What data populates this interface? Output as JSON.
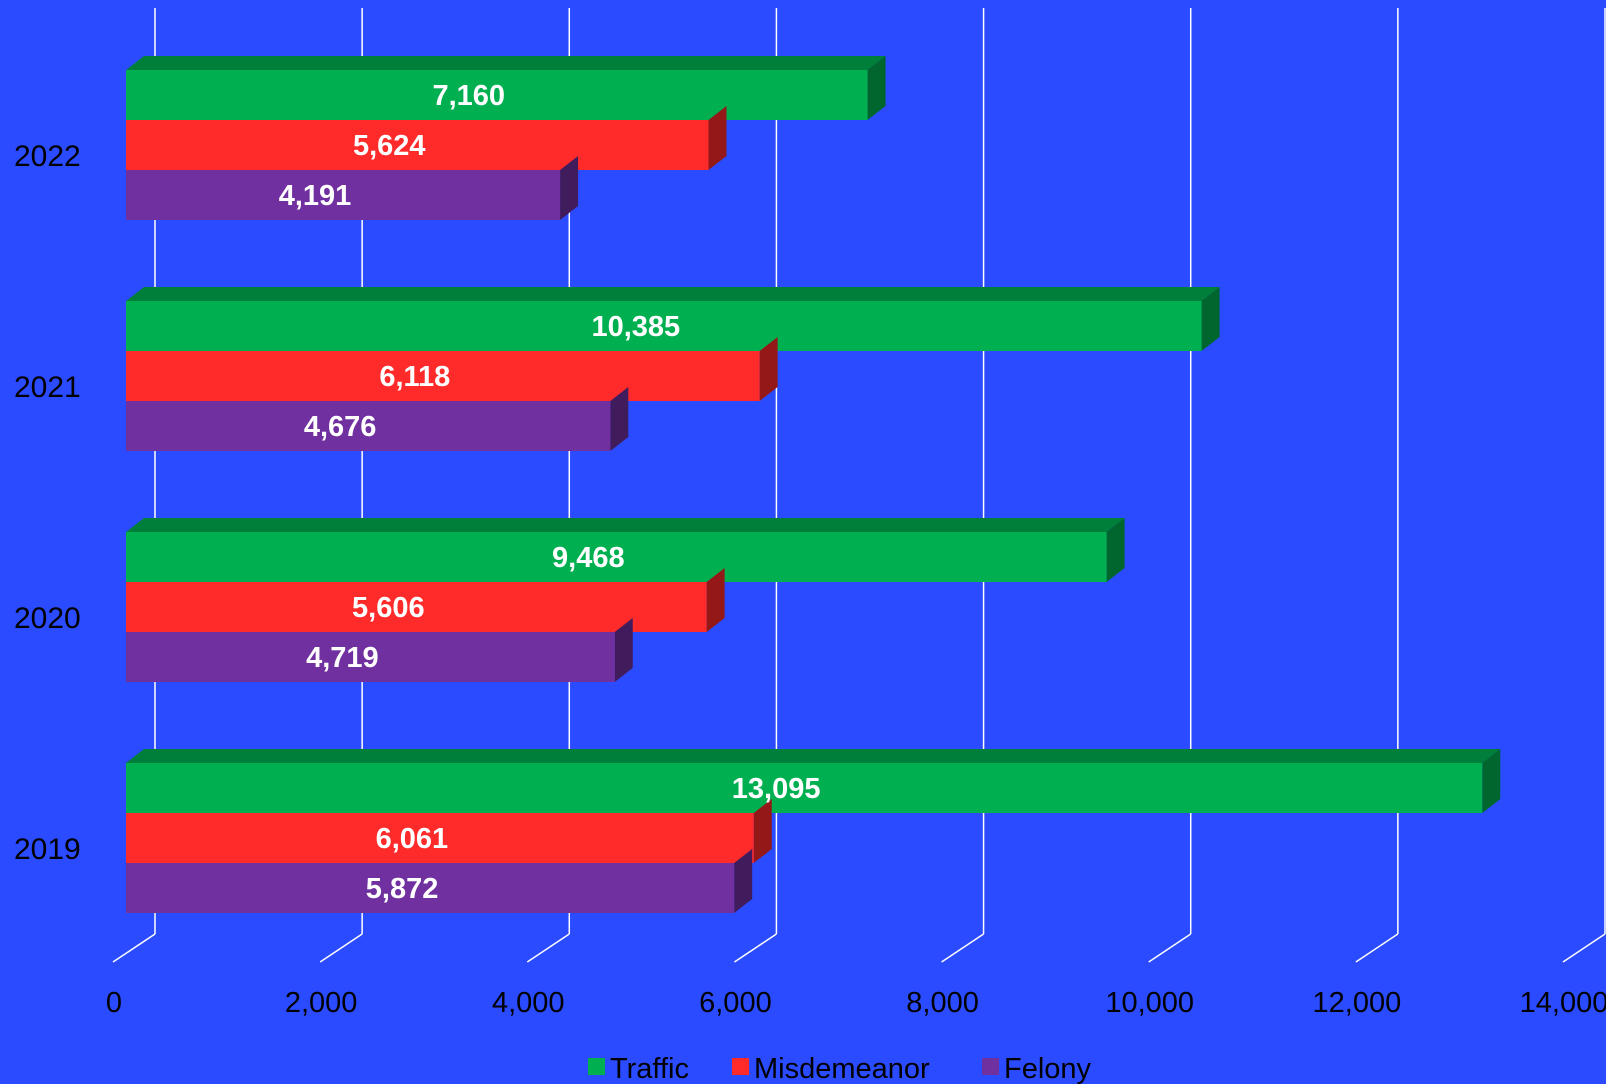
{
  "chart_data": {
    "type": "bar",
    "orientation": "horizontal",
    "style": "3d",
    "title": "",
    "xlabel": "",
    "ylabel": "",
    "categories": [
      "2022",
      "2021",
      "2020",
      "2019"
    ],
    "series": [
      {
        "name": "Traffic",
        "color": "#00B050",
        "values": [
          7160,
          10385,
          9468,
          13095
        ],
        "labels": [
          "7,160",
          "10,385",
          "9,468",
          "13,095"
        ]
      },
      {
        "name": "Misdemeanor",
        "color": "#FF2A2A",
        "values": [
          5624,
          6118,
          5606,
          6061
        ],
        "labels": [
          "5,624",
          "6,118",
          "5,606",
          "6,061"
        ]
      },
      {
        "name": "Felony",
        "color": "#7030A0",
        "values": [
          4191,
          4676,
          4719,
          5872
        ],
        "labels": [
          "4,191",
          "4,676",
          "4,719",
          "5,872"
        ]
      }
    ],
    "xlim": [
      0,
      14000
    ],
    "x_ticks": [
      "0",
      "2,000",
      "4,000",
      "6,000",
      "8,000",
      "10,000",
      "12,000",
      "14,000"
    ],
    "grid": true,
    "legend": "bottom-center",
    "background_color": "#2A4BFF"
  }
}
